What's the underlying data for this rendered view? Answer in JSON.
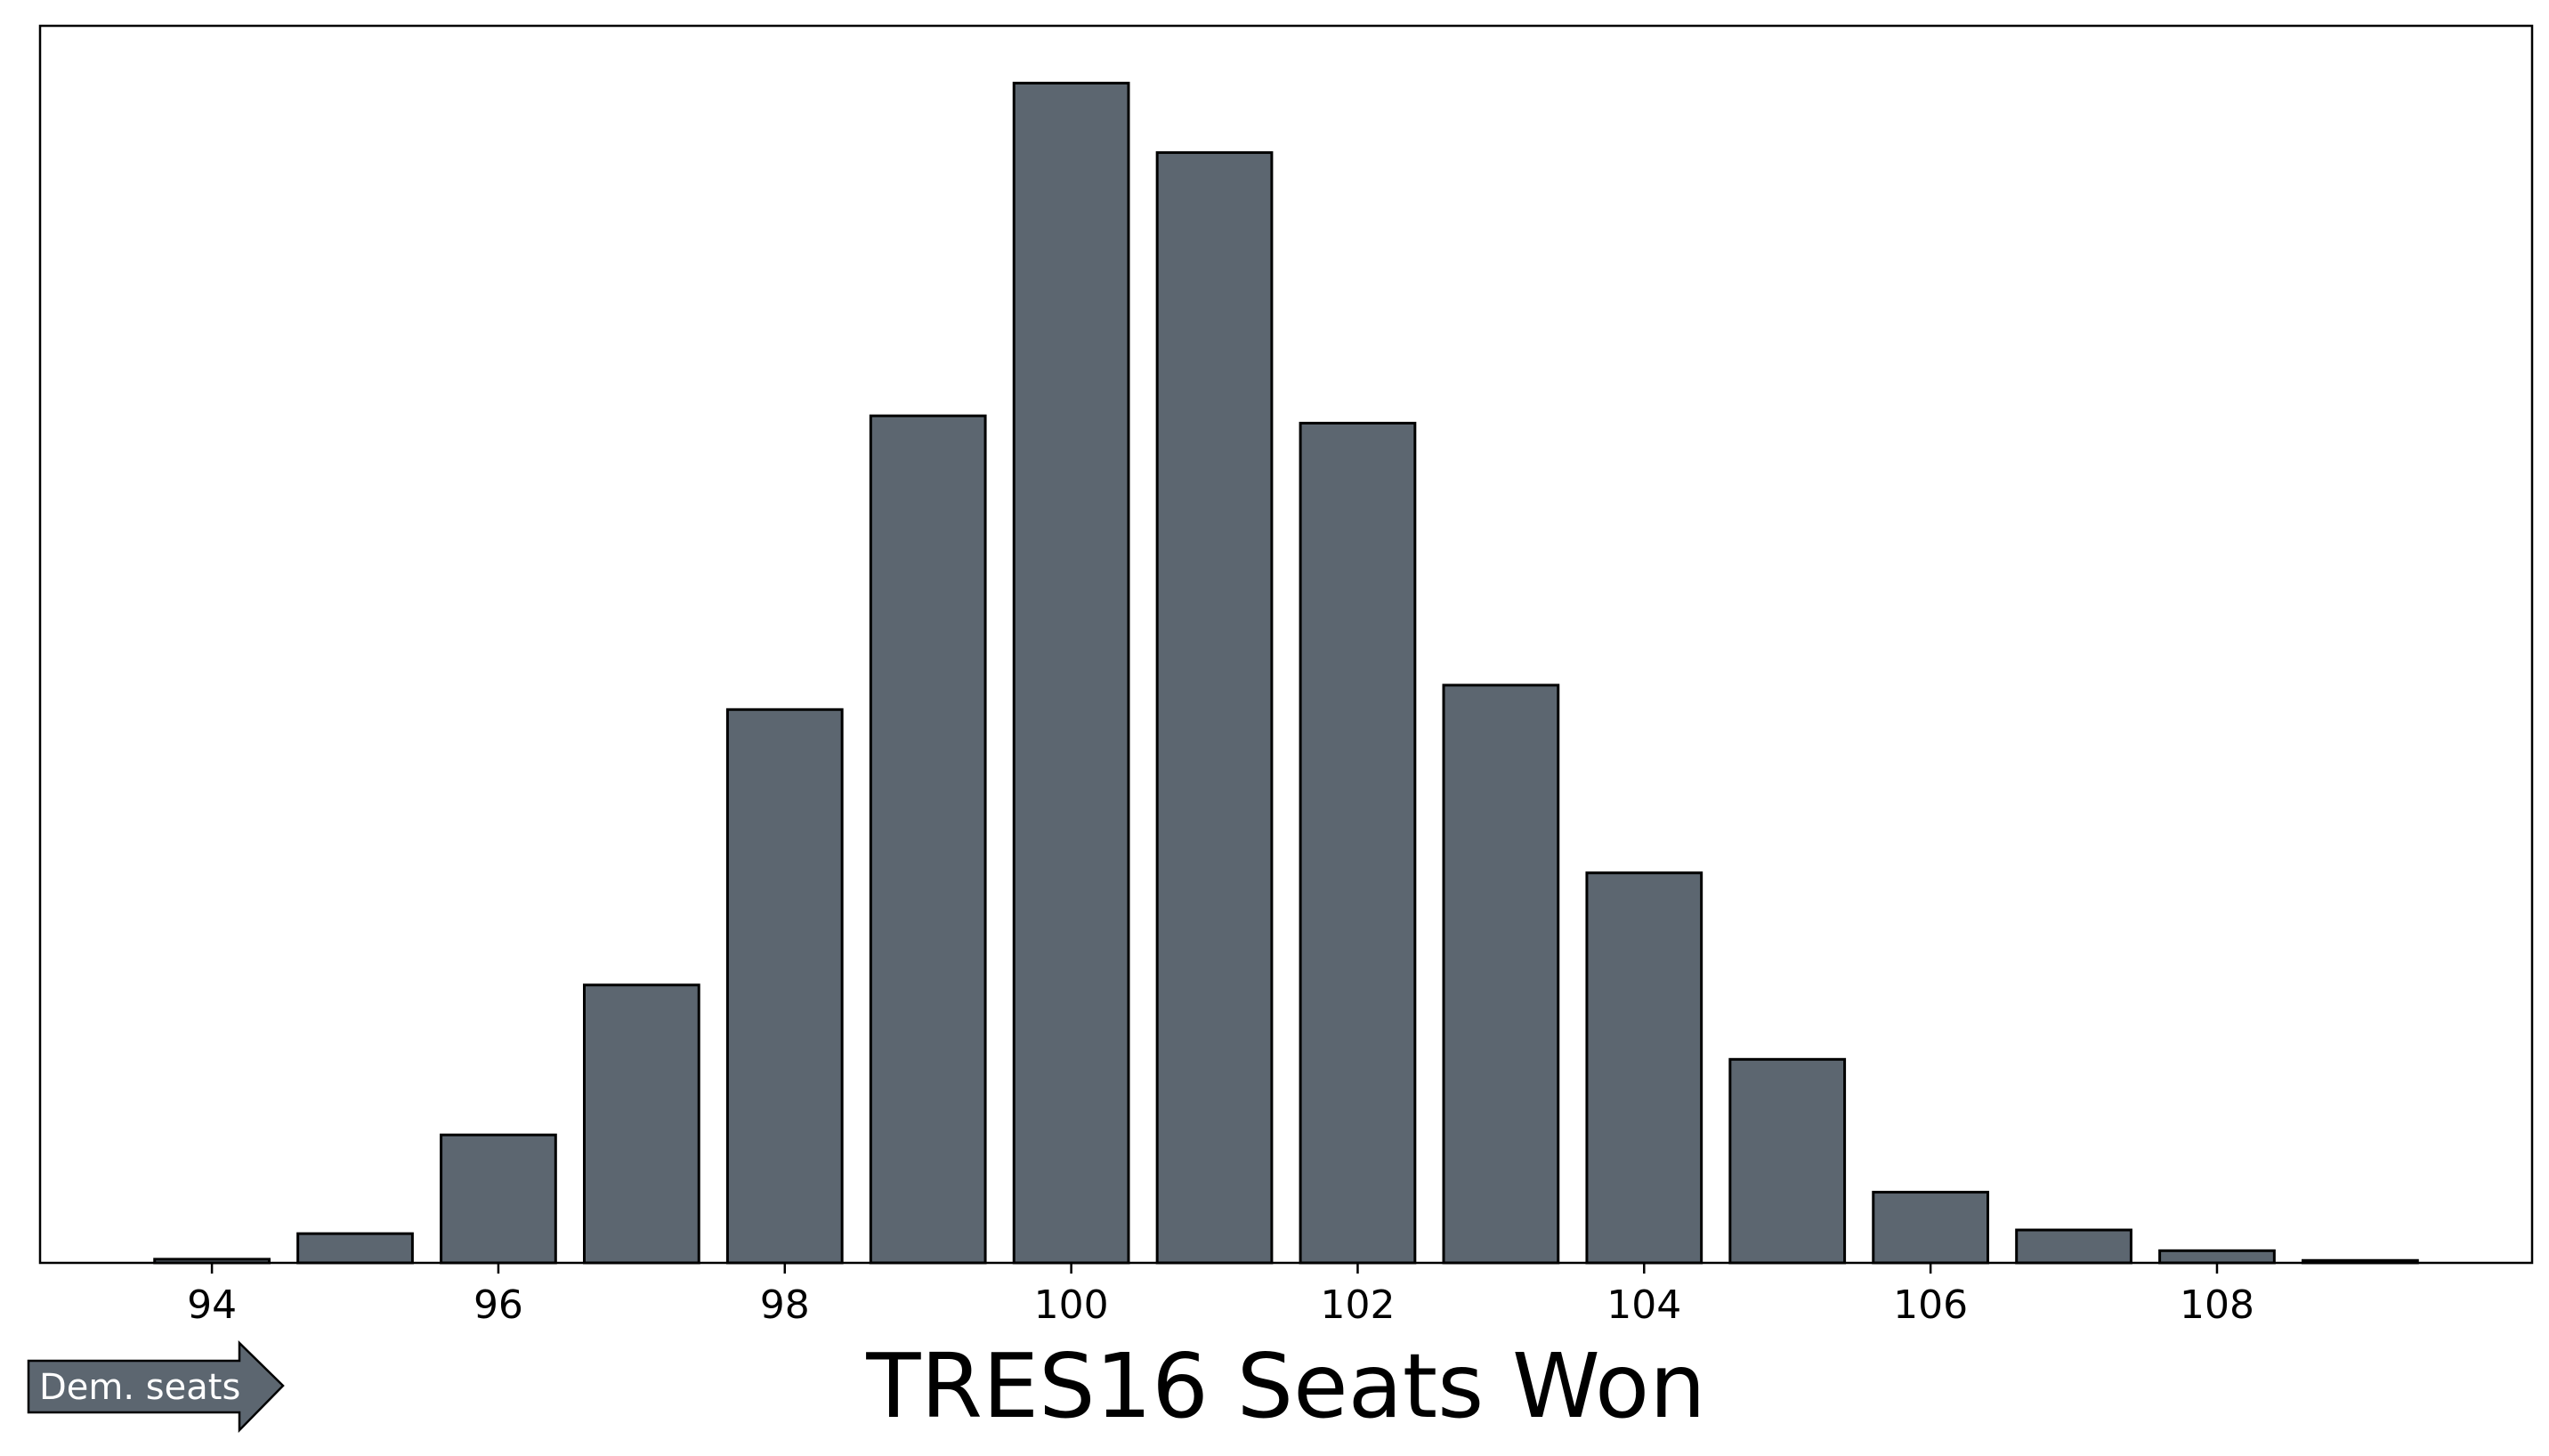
{
  "chart_data": {
    "type": "bar",
    "xlabel": "TRES16 Seats Won",
    "ylabel": "",
    "title": "",
    "x": [
      94,
      95,
      96,
      97,
      98,
      99,
      100,
      101,
      102,
      103,
      104,
      105,
      106,
      107,
      108,
      109
    ],
    "values": [
      0.3,
      2.4,
      10.5,
      22.8,
      45.4,
      69.5,
      96.8,
      91.1,
      68.9,
      47.4,
      32.0,
      16.7,
      5.8,
      2.7,
      1.0,
      0.2
    ],
    "xticks": [
      94,
      96,
      98,
      100,
      102,
      104,
      106,
      108
    ],
    "xlim": [
      92.8,
      110.2
    ],
    "ylim": [
      0,
      101.5
    ],
    "show_yticks": false,
    "grid": false,
    "legend": "none",
    "bar_color": "#5c6670",
    "edge_color": "#000000"
  },
  "annotation": {
    "label": "Dem. seats",
    "fill_color": "#5c6670",
    "text_color": "#ffffff"
  }
}
